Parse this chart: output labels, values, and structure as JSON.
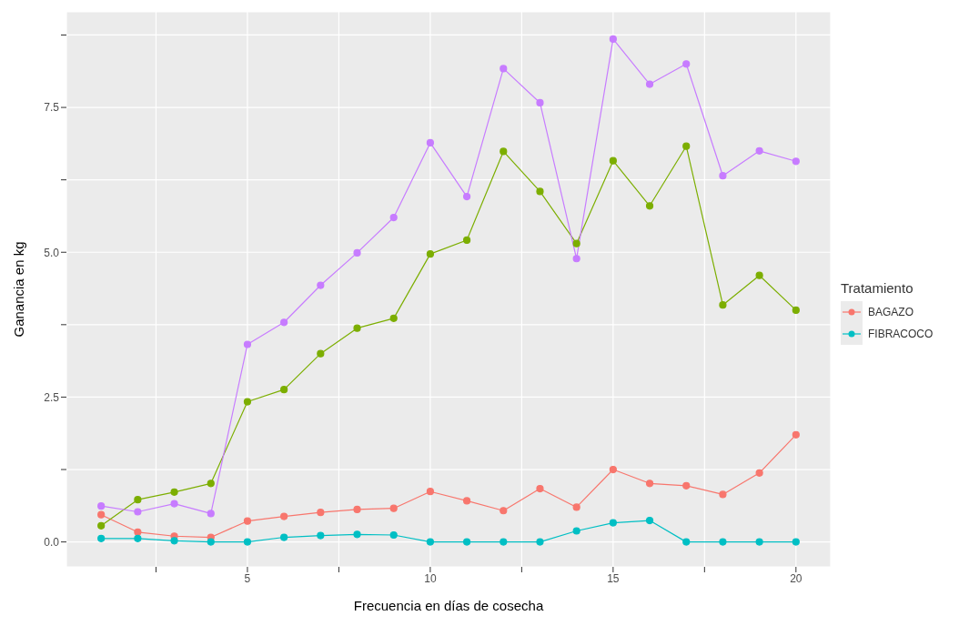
{
  "chart_data": {
    "type": "line",
    "xlabel": "Frecuencia en días de cosecha",
    "ylabel": "Ganancia en kg",
    "legend_title": "Tratamiento",
    "x": [
      1,
      2,
      3,
      4,
      5,
      6,
      7,
      8,
      9,
      10,
      11,
      12,
      13,
      14,
      15,
      16,
      17,
      18,
      19,
      20
    ],
    "series": [
      {
        "name": "BAGAZO",
        "color": "#f8766d",
        "values": [
          0.47,
          0.17,
          0.1,
          0.08,
          0.36,
          0.44,
          0.51,
          0.56,
          0.58,
          0.87,
          0.71,
          0.54,
          0.92,
          0.6,
          1.25,
          1.01,
          0.97,
          0.82,
          1.19,
          1.85
        ]
      },
      {
        "color": "#7cae00",
        "values": [
          0.28,
          0.73,
          0.86,
          1.01,
          2.42,
          2.63,
          3.25,
          3.69,
          3.86,
          4.97,
          5.21,
          6.74,
          6.05,
          5.15,
          6.58,
          5.8,
          6.83,
          4.09,
          4.6,
          4.0
        ]
      },
      {
        "name": "FIBRACOCO",
        "color": "#00bfc4",
        "values": [
          0.06,
          0.06,
          0.02,
          0,
          0,
          0.08,
          0.11,
          0.13,
          0.12,
          0,
          0,
          0,
          0,
          0.19,
          0.33,
          0.37,
          0,
          0,
          0,
          0
        ]
      },
      {
        "color": "#c77cff",
        "values": [
          0.62,
          0.52,
          0.66,
          0.49,
          3.41,
          3.79,
          4.43,
          4.99,
          5.6,
          6.89,
          5.96,
          8.17,
          7.58,
          4.89,
          8.68,
          7.9,
          8.25,
          6.32,
          6.75,
          6.57
        ]
      }
    ],
    "xlim": [
      0.05,
      20.95
    ],
    "ylim": [
      -0.43,
      9.15
    ],
    "xticks": [
      {
        "value": 2.5,
        "label": null
      },
      5,
      {
        "value": 7.5,
        "label": null
      },
      10,
      {
        "value": 12.5,
        "label": null
      },
      15,
      {
        "value": 17.5,
        "label": null
      },
      20
    ],
    "yticks": [
      {
        "value": 0,
        "label": "0.0"
      },
      {
        "value": 1.25,
        "label": null
      },
      {
        "value": 2.5,
        "label": "2.5"
      },
      {
        "value": 3.75,
        "label": null
      },
      {
        "value": 5,
        "label": "5.0"
      },
      {
        "value": 6.25,
        "label": null
      },
      {
        "value": 7.5,
        "label": "7.5"
      },
      {
        "value": 8.75,
        "label": null
      }
    ],
    "grid": true,
    "legend": "right",
    "marker": "circle",
    "line_style": "solid"
  }
}
